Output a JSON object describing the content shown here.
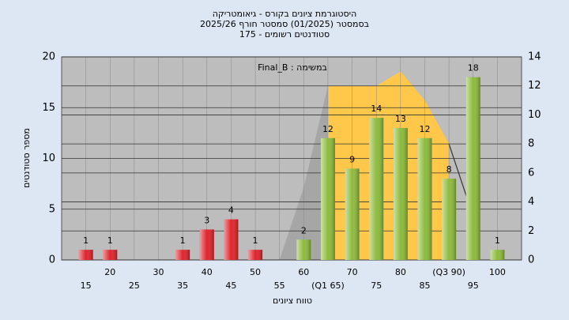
{
  "chart_data": {
    "type": "bar",
    "title": [
      "היסטוגרמת ציונים בקורס - גיאומטריקה",
      "בסמסטר  (01/2025)  סמסטר חורף 2025/26",
      "סטודנטים רשומים - 175"
    ],
    "annotation": "Final_B : במשימה",
    "x_label": "טווח ציונים",
    "y_label": "מספר סטודנטים",
    "categories": [
      "15",
      "20",
      "25",
      "30",
      "35",
      "40",
      "45",
      "50",
      "55",
      "60",
      "(Q1 65)",
      "70",
      "75",
      "80",
      "85",
      "(Q3 90)",
      "95",
      "100"
    ],
    "values": [
      1,
      1,
      0,
      0,
      1,
      3,
      4,
      1,
      0,
      2,
      12,
      9,
      14,
      13,
      12,
      8,
      18,
      1
    ],
    "colors": [
      "#e0242c",
      "#e0242c",
      "#e0242c",
      "#e0242c",
      "#e0242c",
      "#e0242c",
      "#e0242c",
      "#e0242c",
      "#8dbb3c",
      "#8dbb3c",
      "#8dbb3c",
      "#8dbb3c",
      "#8dbb3c",
      "#8dbb3c",
      "#8dbb3c",
      "#8dbb3c",
      "#8dbb3c",
      "#8dbb3c"
    ],
    "ylim": [
      0,
      20
    ],
    "yticks": [
      0,
      5,
      10,
      15,
      20
    ],
    "y2lim": [
      0,
      14
    ],
    "y2ticks": [
      0,
      2,
      4,
      6,
      8,
      10,
      12,
      14
    ],
    "overlay": [
      {
        "kind": "area",
        "color": "#a6a6a6",
        "values": [
          null,
          null,
          null,
          null,
          null,
          null,
          null,
          null,
          0,
          5,
          12,
          null,
          null,
          null,
          null,
          null,
          null,
          null
        ]
      },
      {
        "kind": "area",
        "color": "#ffc84a",
        "values": [
          null,
          null,
          null,
          null,
          null,
          null,
          null,
          null,
          null,
          null,
          12,
          12,
          12,
          13,
          11,
          8,
          null,
          null
        ]
      },
      {
        "kind": "line",
        "color": "#333333",
        "values": [
          null,
          null,
          null,
          null,
          null,
          null,
          null,
          null,
          null,
          null,
          null,
          null,
          null,
          null,
          null,
          8,
          3,
          null
        ]
      }
    ],
    "grid": true
  }
}
